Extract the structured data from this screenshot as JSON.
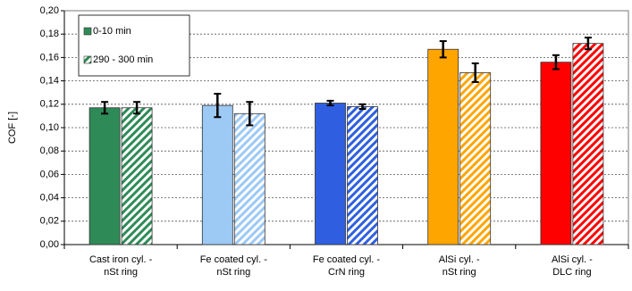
{
  "chart_data": {
    "type": "bar",
    "y_label": "COF [-]",
    "categories": [
      [
        "Cast iron cyl. -",
        "nSt ring"
      ],
      [
        "Fe coated cyl. -",
        "nSt ring"
      ],
      [
        "Fe coated cyl. -",
        "CrN ring"
      ],
      [
        "AlSi cyl. -",
        "nSt ring"
      ],
      [
        "AlSi cyl. -",
        "DLC ring"
      ]
    ],
    "series": [
      {
        "name": "0-10 min",
        "hatch": false,
        "colors": [
          "#2e8b57",
          "#9dc9f5",
          "#2f5fe0",
          "#ffa500",
          "#ff0000"
        ],
        "values": [
          0.117,
          0.119,
          0.121,
          0.167,
          0.156
        ],
        "errors": [
          0.005,
          0.01,
          0.002,
          0.007,
          0.006
        ]
      },
      {
        "name": "290 - 300 min",
        "hatch": true,
        "colors": [
          "#2e8b57",
          "#9dc9f5",
          "#2f5fe0",
          "#ffa500",
          "#ff0000"
        ],
        "values": [
          0.117,
          0.112,
          0.118,
          0.147,
          0.172
        ],
        "errors": [
          0.005,
          0.01,
          0.002,
          0.008,
          0.005
        ]
      }
    ],
    "ylim": [
      0,
      0.2
    ],
    "yticks": [
      {
        "value": 0,
        "label": "0,00"
      },
      {
        "value": 0.02,
        "label": "0,02"
      },
      {
        "value": 0.04,
        "label": "0,04"
      },
      {
        "value": 0.06,
        "label": "0,06"
      },
      {
        "value": 0.08,
        "label": "0,08"
      },
      {
        "value": 0.1,
        "label": "0,10"
      },
      {
        "value": 0.12,
        "label": "0,12"
      },
      {
        "value": 0.14,
        "label": "0,14"
      },
      {
        "value": 0.16,
        "label": "0,16"
      },
      {
        "value": 0.18,
        "label": "0,18"
      },
      {
        "value": 0.2,
        "label": "0,20"
      }
    ],
    "grid": true,
    "legend": "top-left"
  }
}
